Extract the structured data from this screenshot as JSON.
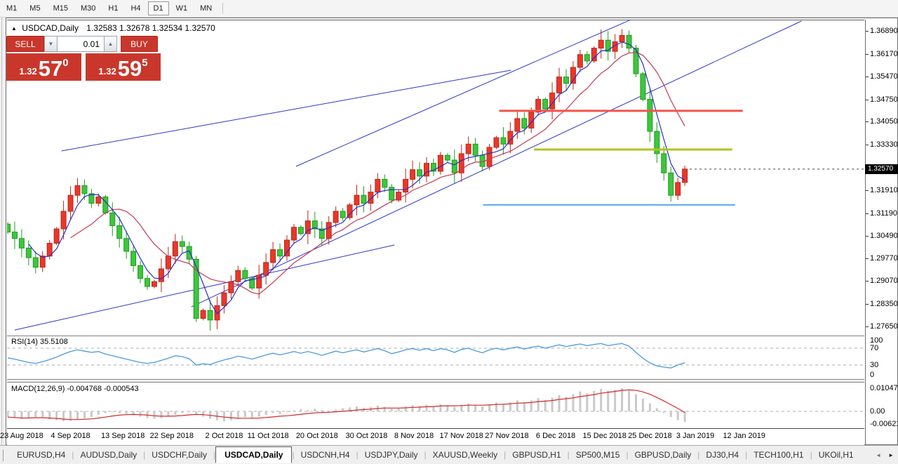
{
  "toolbar": {
    "timeframes": [
      "M1",
      "M5",
      "M15",
      "M30",
      "H1",
      "H4",
      "D1",
      "W1",
      "MN"
    ],
    "active": "D1"
  },
  "title": {
    "symbol": "USDCAD,Daily",
    "quote_line": "1.32583 1.32678 1.32534 1.32570"
  },
  "trade_panel": {
    "sell_label": "SELL",
    "buy_label": "BUY",
    "volume": "0.01",
    "sell_price": {
      "base": "1.32",
      "main": "57",
      "sup": "0"
    },
    "buy_price": {
      "base": "1.32",
      "main": "59",
      "sup": "5"
    }
  },
  "price_axis": {
    "ticks": [
      "1.36890",
      "1.36170",
      "1.35470",
      "1.34750",
      "1.34050",
      "1.33330",
      "1.31910",
      "1.31190",
      "1.30490",
      "1.29770",
      "1.29070",
      "1.28350",
      "1.27650"
    ],
    "current": "1.32570"
  },
  "rsi_panel": {
    "name": "RSI(14)",
    "value": "35.5108",
    "axis_labels": [
      "100",
      "70",
      "30",
      "0"
    ]
  },
  "macd_panel": {
    "name": "MACD(12,26,9)",
    "values": "-0.004768 -0.000543",
    "axis_labels": [
      "0.010474",
      "0.00",
      "-0.006218"
    ]
  },
  "date_axis": {
    "ticks": [
      {
        "label": "23 Aug 2018",
        "bar": 2
      },
      {
        "label": "4 Sep 2018",
        "bar": 9
      },
      {
        "label": "13 Sep 2018",
        "bar": 16.5
      },
      {
        "label": "22 Sep 2018",
        "bar": 23.5
      },
      {
        "label": "2 Oct 2018",
        "bar": 31
      },
      {
        "label": "11 Oct 2018",
        "bar": 37.3
      },
      {
        "label": "20 Oct 2018",
        "bar": 44.3
      },
      {
        "label": "30 Oct 2018",
        "bar": 51.4
      },
      {
        "label": "8 Nov 2018",
        "bar": 58.2
      },
      {
        "label": "17 Nov 2018",
        "bar": 65
      },
      {
        "label": "27 Nov 2018",
        "bar": 71.5
      },
      {
        "label": "6 Dec 2018",
        "bar": 78.5
      },
      {
        "label": "15 Dec 2018",
        "bar": 85.5
      },
      {
        "label": "25 Dec 2018",
        "bar": 92
      },
      {
        "label": "3 Jan 2019",
        "bar": 98.5
      },
      {
        "label": "12 Jan 2019",
        "bar": 105.5
      }
    ]
  },
  "tabs": {
    "items": [
      "EURUSD,H4",
      "AUDUSD,Daily",
      "USDCHF,Daily",
      "USDCAD,Daily",
      "USDCNH,H4",
      "USDJPY,Daily",
      "XAUUSD,Weekly",
      "GBPUSD,H1",
      "SP500,M15",
      "GBPUSD,Daily",
      "DJ30,H4",
      "TECH100,H1",
      "UKOil,H1"
    ],
    "active": "USDCAD,Daily"
  },
  "chart_data": {
    "type": "candlestick",
    "symbol": "USDCAD",
    "timeframe": "Daily",
    "current_ohlc": {
      "open": 1.32583,
      "high": 1.32678,
      "low": 1.32534,
      "close": 1.3257
    },
    "current_price": 1.3257,
    "price_range_top": 1.3689,
    "price_range_bottom": 1.2765,
    "first_open": 1.3085,
    "closes": [
      1.306,
      1.304,
      1.301,
      1.298,
      1.295,
      1.2985,
      1.3025,
      1.307,
      1.3125,
      1.3175,
      1.3205,
      1.318,
      1.315,
      1.317,
      1.312,
      1.308,
      1.304,
      1.3,
      1.2955,
      1.2915,
      1.289,
      1.2905,
      1.2945,
      1.2985,
      1.303,
      1.3015,
      1.2975,
      1.279,
      1.2815,
      1.2785,
      1.283,
      1.287,
      1.2905,
      1.294,
      1.2915,
      1.2885,
      1.2925,
      1.2965,
      1.3005,
      1.2985,
      1.3035,
      1.3075,
      1.3055,
      1.3095,
      1.307,
      1.304,
      1.309,
      1.3125,
      1.3105,
      1.3145,
      1.3175,
      1.315,
      1.3185,
      1.3225,
      1.32,
      1.316,
      1.3185,
      1.3225,
      1.3255,
      1.3235,
      1.3275,
      1.325,
      1.33,
      1.3285,
      1.3245,
      1.3305,
      1.3335,
      1.33,
      1.3265,
      1.3325,
      1.3355,
      1.3335,
      1.3375,
      1.3415,
      1.3385,
      1.3435,
      1.3475,
      1.3445,
      1.3495,
      1.3545,
      1.3525,
      1.3575,
      1.3615,
      1.3595,
      1.3635,
      1.366,
      1.3625,
      1.3655,
      1.3675,
      1.3635,
      1.3555,
      1.3475,
      1.3375,
      1.3305,
      1.3245,
      1.3175,
      1.3215,
      1.3257
    ],
    "indicators": {
      "ma_fast": {
        "type": "SMA",
        "period": 4,
        "color": "#2a2fc4"
      },
      "ma_slow": {
        "type": "SMA",
        "period": 10,
        "color": "#c23a55"
      },
      "rsi": {
        "period": 14,
        "current": 35.5108,
        "levels": [
          70,
          30
        ],
        "color": "#4a9ae0",
        "values": [
          47,
          44,
          40,
          36,
          34,
          38,
          43,
          49,
          56,
          62,
          66,
          63,
          60,
          62,
          56,
          52,
          48,
          44,
          40,
          36,
          34,
          36,
          41,
          46,
          52,
          50,
          45,
          30,
          33,
          31,
          37,
          42,
          46,
          51,
          48,
          44,
          49,
          54,
          58,
          54,
          58,
          62,
          58,
          62,
          58,
          53,
          58,
          63,
          59,
          63,
          66,
          61,
          65,
          69,
          64,
          57,
          61,
          66,
          69,
          65,
          69,
          64,
          69,
          66,
          60,
          67,
          70,
          64,
          59,
          66,
          70,
          66,
          70,
          73,
          68,
          72,
          75,
          70,
          74,
          78,
          74,
          77,
          80,
          76,
          79,
          81,
          76,
          79,
          81,
          75,
          60,
          46,
          35,
          28,
          25,
          23,
          30,
          35.5
        ]
      },
      "macd": {
        "fast": 12,
        "slow": 26,
        "signal": 9,
        "current_main": -0.004768,
        "current_signal": -0.000543,
        "hist_color": "#c9c9c9",
        "signal_color": "#d62a2a",
        "hist": [
          -0.0025,
          -0.003,
          -0.0034,
          -0.003,
          -0.0026,
          -0.003,
          -0.0035,
          -0.004,
          -0.0045,
          -0.0042,
          -0.0038,
          -0.0032,
          -0.0025,
          -0.0015,
          -0.0008,
          -0.0004,
          -0.0008,
          -0.0012,
          -0.0018,
          -0.0024,
          -0.003,
          -0.0034,
          -0.003,
          -0.0024,
          -0.0016,
          -0.0008,
          -0.0002,
          -0.0012,
          -0.0024,
          -0.0034,
          -0.004,
          -0.0044,
          -0.004,
          -0.0034,
          -0.0026,
          -0.003,
          -0.0024,
          -0.0016,
          -0.0008,
          -0.0012,
          -0.0004,
          0.0004,
          0.001,
          0.0006,
          0.0012,
          0.0006,
          0.0002,
          0.0008,
          0.0014,
          0.0018,
          0.0022,
          0.0016,
          0.002,
          0.0026,
          0.002,
          0.0012,
          0.0016,
          0.0022,
          0.0028,
          0.0024,
          0.003,
          0.0024,
          0.0032,
          0.0028,
          0.002,
          0.003,
          0.0036,
          0.0028,
          0.0022,
          0.0032,
          0.004,
          0.0034,
          0.0042,
          0.005,
          0.0042,
          0.005,
          0.006,
          0.0052,
          0.0062,
          0.0074,
          0.0066,
          0.0078,
          0.009,
          0.0082,
          0.0092,
          0.0102,
          0.0092,
          0.0098,
          0.0104,
          0.0094,
          0.0078,
          0.0058,
          0.0036,
          0.0014,
          -0.0006,
          -0.0026,
          -0.004,
          -0.0048
        ],
        "signal_values": [
          -0.0026,
          -0.0028,
          -0.003,
          -0.003,
          -0.0029,
          -0.0029,
          -0.003,
          -0.0032,
          -0.0035,
          -0.0037,
          -0.0037,
          -0.0036,
          -0.0034,
          -0.003,
          -0.0026,
          -0.0021,
          -0.0017,
          -0.0015,
          -0.0014,
          -0.0015,
          -0.0017,
          -0.002,
          -0.0022,
          -0.0022,
          -0.0021,
          -0.0019,
          -0.0016,
          -0.0014,
          -0.0015,
          -0.0018,
          -0.0022,
          -0.0026,
          -0.0029,
          -0.0031,
          -0.0031,
          -0.0031,
          -0.003,
          -0.0028,
          -0.0025,
          -0.0022,
          -0.002,
          -0.0017,
          -0.0013,
          -0.001,
          -0.0007,
          -0.0005,
          -0.0004,
          -0.0002,
          0.0,
          0.0003,
          0.0006,
          0.0008,
          0.001,
          0.0013,
          0.0015,
          0.0015,
          0.0015,
          0.0016,
          0.0018,
          0.0019,
          0.0021,
          0.0022,
          0.0024,
          0.0025,
          0.0025,
          0.0026,
          0.0028,
          0.0028,
          0.0028,
          0.0029,
          0.0031,
          0.0032,
          0.0034,
          0.0037,
          0.0038,
          0.004,
          0.0044,
          0.0046,
          0.0049,
          0.0054,
          0.0057,
          0.0061,
          0.0067,
          0.0071,
          0.0076,
          0.0082,
          0.0086,
          0.009,
          0.0095,
          0.0097,
          0.0095,
          0.0088,
          0.0077,
          0.0063,
          0.0047,
          0.003,
          0.0013,
          -0.0005
        ]
      }
    },
    "overlays": {
      "hlines": [
        {
          "price": 1.3439,
          "bar1": 70.4,
          "bar2": 105.3,
          "color": "#f2534a",
          "width": 3
        },
        {
          "price": 1.3318,
          "bar1": 75.4,
          "bar2": 103.8,
          "color": "#b0c41c",
          "width": 3
        },
        {
          "price": 1.3145,
          "bar1": 68.1,
          "bar2": 104.2,
          "color": "#55a9ee",
          "width": 2
        }
      ],
      "trendlines": [
        {
          "bar1": 1.0,
          "price1": 1.27538,
          "bar2": 55.4,
          "price2": 1.30196,
          "color": "#2d35cc",
          "width": 1
        },
        {
          "bar1": 7.7,
          "price1": 1.33137,
          "bar2": 72.1,
          "price2": 1.35661,
          "color": "#2d35cc",
          "width": 1
        },
        {
          "bar1": 26.3,
          "price1": 1.28264,
          "bar2": 113.7,
          "price2": 1.37197,
          "color": "#2d35cc",
          "width": 1
        },
        {
          "bar1": 41.3,
          "price1": 1.32654,
          "bar2": 89.2,
          "price2": 1.37234,
          "color": "#2d35cc",
          "width": 1
        }
      ]
    },
    "colors": {
      "bull_fill": "#ea372b",
      "bull_stroke": "#b8291c",
      "bear_fill": "#3fc53f",
      "bear_stroke": "#1d9e1d",
      "background": "#ffffff"
    }
  }
}
